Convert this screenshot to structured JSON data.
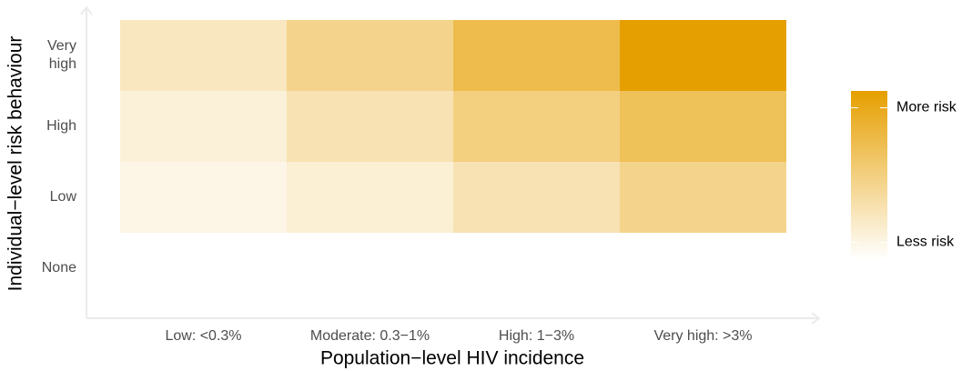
{
  "chart_data": {
    "type": "heatmap",
    "x_label": "Population−level HIV incidence",
    "y_label": "Individual−level risk behaviour",
    "categories": [
      "Low: <0.3%",
      "Moderate: 0.3−1%",
      "High: 1−3%",
      "Very high: >3%"
    ],
    "y_categories": [
      [
        "Very",
        "high"
      ],
      [
        "High"
      ],
      [
        "Low"
      ],
      [
        "None"
      ]
    ],
    "values": [
      [
        0.25,
        0.45,
        0.7,
        1.0
      ],
      [
        0.15,
        0.3,
        0.5,
        0.65
      ],
      [
        0.1,
        0.17,
        0.3,
        0.45
      ],
      [
        null,
        null,
        null,
        null
      ]
    ],
    "low_color": "#ffffff",
    "high_color": "#e69f00",
    "zlim": [
      0,
      1
    ],
    "legend_ticks": [
      {
        "value": 0.9,
        "label": "More risk"
      },
      {
        "value": 0.1,
        "label": "Less risk"
      }
    ],
    "legend": "right"
  }
}
